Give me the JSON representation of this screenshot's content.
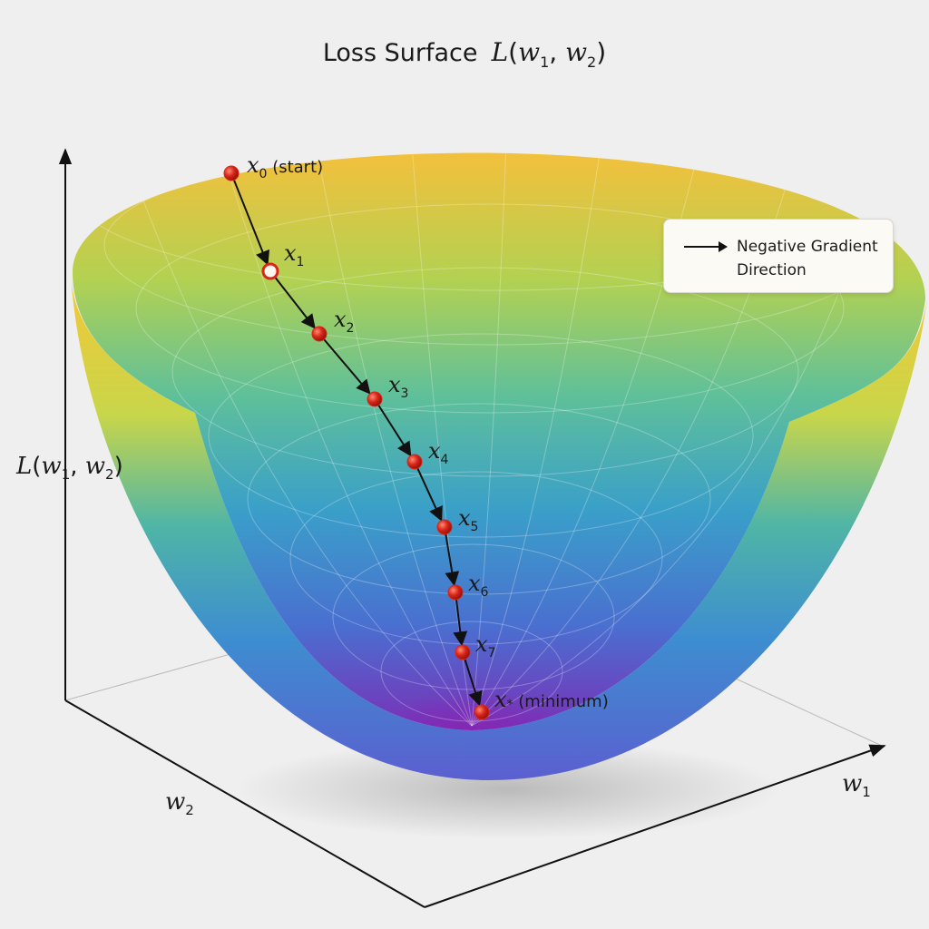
{
  "title": {
    "text": "Loss Surface",
    "func": "L",
    "open": "(",
    "w": "w",
    "sub1": "1",
    "sep": ", ",
    "sub2": "2",
    "close": ")"
  },
  "axes": {
    "vertical": {
      "func": "L",
      "open": "(",
      "w": "w",
      "sub1": "1",
      "sep": ", ",
      "sub2": "2",
      "close": ")"
    },
    "w1": {
      "base": "w",
      "sub": "1"
    },
    "w2": {
      "base": "w",
      "sub": "2"
    }
  },
  "legend": {
    "label": "Negative Gradient Direction",
    "arrow_color": "#111111"
  },
  "points": [
    {
      "base": "x",
      "sub": "0",
      "suffix": " (start)"
    },
    {
      "base": "x",
      "sub": "1",
      "suffix": ""
    },
    {
      "base": "x",
      "sub": "2",
      "suffix": ""
    },
    {
      "base": "x",
      "sub": "3",
      "suffix": ""
    },
    {
      "base": "x",
      "sub": "4",
      "suffix": ""
    },
    {
      "base": "x",
      "sub": "5",
      "suffix": ""
    },
    {
      "base": "x",
      "sub": "6",
      "suffix": ""
    },
    {
      "base": "x",
      "sub": "7",
      "suffix": ""
    },
    {
      "base": "x",
      "sub": "*",
      "suffix": " (minimum)"
    }
  ],
  "colors": {
    "surface_top": "#f6c23a",
    "surface_mid": "#3fa8c8",
    "surface_bottom": "#7a2fb8",
    "point": "#d8261a",
    "path": "#111111"
  }
}
